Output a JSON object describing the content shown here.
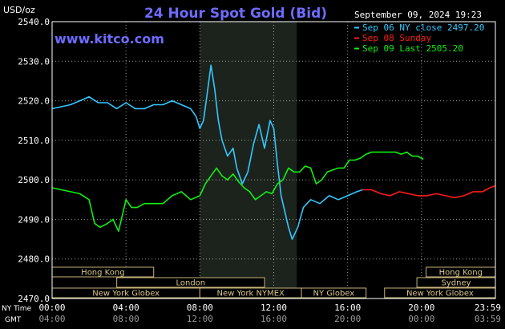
{
  "colors": {
    "background": "#000000",
    "grid": "#ffffff",
    "plot_border": "#ffffff",
    "highlight_band": "#1c231c",
    "title": "#6f6bff",
    "watermark": "#6f6bff",
    "text": "#ffffff",
    "session_fill": "#000000",
    "session_border": "#c6b27a",
    "session_text": "#d8c58a",
    "series_blue": "#35c7ff",
    "series_red": "#ff1b1b",
    "series_green": "#10f010"
  },
  "chart_data": {
    "type": "line",
    "title": "24 Hour Spot Gold (Bid)",
    "date_label": "September 09, 2024 19:23",
    "watermark": "www.kitco.com",
    "ylabel": "USD/oz",
    "ylim": [
      2470,
      2540
    ],
    "y_ticks": [
      2470,
      2480,
      2490,
      2500,
      2510,
      2520,
      2530,
      2540
    ],
    "y_tick_labels": [
      "2470.0",
      "2480.0",
      "2490.0",
      "2500.0",
      "2510.0",
      "2520.0",
      "2530.0",
      "2540.0"
    ],
    "xlim": [
      0,
      24
    ],
    "x_ticks": [
      0,
      4,
      8,
      12,
      16,
      20,
      24
    ],
    "x_row_label_main": "NY Time",
    "x_tick_labels_main": [
      "00:00",
      "04:00",
      "08:00",
      "12:00",
      "16:00",
      "20:00",
      "23:59"
    ],
    "x_row_label_gmt": "GMT",
    "x_tick_labels_gmt": [
      "04:00",
      "08:00",
      "12:00",
      "16:00",
      "20:00",
      "00:00",
      "03:59"
    ],
    "highlight_band_hours": [
      8.0,
      13.25
    ],
    "grid": true,
    "legend_position": "top-right",
    "legend": [
      {
        "label": "Sep 06 NY close 2497.20",
        "color": "#35c7ff"
      },
      {
        "label": "Sep 08 Sunday",
        "color": "#ff1b1b"
      },
      {
        "label": "Sep 09 Last 2505.20",
        "color": "#10f010"
      }
    ],
    "sessions": [
      {
        "label": "Hong Kong",
        "start": 0.0,
        "end": 5.5,
        "row": 0
      },
      {
        "label": "Hong Kong",
        "start": 20.25,
        "end": 24.0,
        "row": 0
      },
      {
        "label": "London",
        "start": 3.5,
        "end": 11.5,
        "row": 1
      },
      {
        "label": "Sydney",
        "start": 19.75,
        "end": 24.0,
        "row": 1
      },
      {
        "label": "New York Globex",
        "start": 0.0,
        "end": 8.0,
        "row": 2
      },
      {
        "label": "New York NYMEX",
        "start": 8.0,
        "end": 13.5,
        "row": 2
      },
      {
        "label": "NY Globex",
        "start": 13.5,
        "end": 17.0,
        "row": 2
      },
      {
        "label": "New York Globex",
        "start": 18.0,
        "end": 24.0,
        "row": 2
      }
    ],
    "series": [
      {
        "name": "Sep 06 NY close 2497.20",
        "color": "#35c7ff",
        "x": [
          0,
          0.5,
          1.0,
          1.5,
          2.0,
          2.5,
          3.0,
          3.5,
          4.0,
          4.5,
          5.0,
          5.5,
          6.0,
          6.5,
          7.0,
          7.5,
          7.8,
          8.0,
          8.2,
          8.4,
          8.6,
          8.8,
          9.0,
          9.2,
          9.5,
          9.8,
          10.0,
          10.3,
          10.6,
          10.9,
          11.2,
          11.5,
          11.8,
          12.0,
          12.2,
          12.4,
          12.6,
          12.8,
          13.0,
          13.3,
          13.6,
          14.0,
          14.5,
          15.0,
          15.5,
          16.0,
          16.5,
          16.8
        ],
        "y": [
          2518,
          2518.5,
          2519,
          2520,
          2521,
          2519.5,
          2519.5,
          2518,
          2519.5,
          2518,
          2518,
          2519,
          2519,
          2520,
          2519,
          2518,
          2516,
          2513,
          2515,
          2522,
          2529,
          2523,
          2515,
          2510,
          2506,
          2508,
          2503,
          2499,
          2502,
          2509,
          2514,
          2508,
          2515,
          2513,
          2504,
          2496,
          2492,
          2488,
          2485,
          2488,
          2493,
          2495,
          2494,
          2496,
          2495,
          2496,
          2497,
          2497.5
        ]
      },
      {
        "name": "Sep 08 Sunday",
        "color": "#ff1b1b",
        "x": [
          16.8,
          17.3,
          17.8,
          18.3,
          18.8,
          19.3,
          19.8,
          20.3,
          20.8,
          21.3,
          21.8,
          22.3,
          22.8,
          23.3,
          23.7,
          24.0
        ],
        "y": [
          2497.5,
          2497.5,
          2496.5,
          2496,
          2497,
          2496.5,
          2496,
          2496,
          2496.5,
          2496,
          2495.5,
          2496,
          2497,
          2497,
          2498,
          2498.5
        ]
      },
      {
        "name": "Sep 09 Last 2505.20",
        "color": "#10f010",
        "x": [
          0,
          0.5,
          1.0,
          1.5,
          2.0,
          2.3,
          2.6,
          3.0,
          3.3,
          3.6,
          4.0,
          4.3,
          4.6,
          5.0,
          5.5,
          6.0,
          6.5,
          7.0,
          7.5,
          8.0,
          8.3,
          8.6,
          8.9,
          9.2,
          9.5,
          9.8,
          10.1,
          10.4,
          10.7,
          11.0,
          11.3,
          11.6,
          11.9,
          12.2,
          12.5,
          12.8,
          13.1,
          13.4,
          13.7,
          14.0,
          14.3,
          14.6,
          14.9,
          15.2,
          15.5,
          15.8,
          16.1,
          16.4,
          16.7,
          17.0,
          17.3,
          17.6,
          18.0,
          18.3,
          18.6,
          18.9,
          19.2,
          19.5,
          19.8,
          20.1
        ],
        "y": [
          2498,
          2497.5,
          2497,
          2496.5,
          2495,
          2489,
          2488,
          2489,
          2490,
          2487,
          2495,
          2493,
          2493,
          2494,
          2494,
          2494,
          2496,
          2497,
          2495,
          2496,
          2499,
          2501,
          2503,
          2501,
          2500,
          2501.5,
          2499.5,
          2498,
          2497,
          2495,
          2496,
          2497,
          2496.5,
          2499,
          2500,
          2503,
          2502,
          2502,
          2503.5,
          2503,
          2499,
          2500,
          2502,
          2502.5,
          2503,
          2503,
          2505,
          2505,
          2505.5,
          2506.5,
          2507,
          2507,
          2507,
          2507,
          2507,
          2506.5,
          2507,
          2506,
          2506,
          2505.2
        ]
      }
    ]
  }
}
